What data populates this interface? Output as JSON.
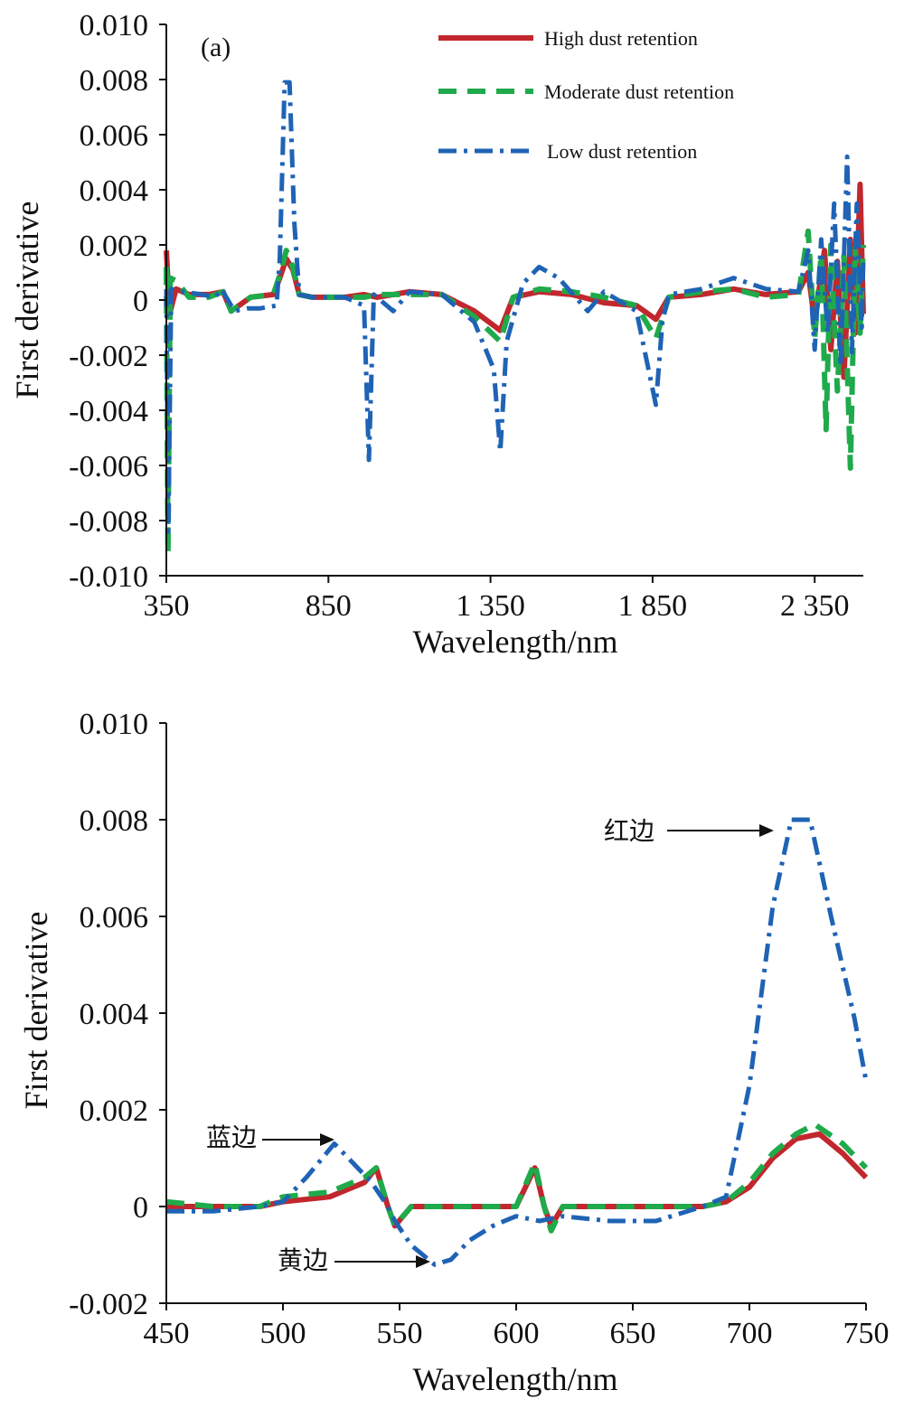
{
  "colors": {
    "high": "#c1272d",
    "moderate": "#1faa4b",
    "low": "#1f63b5"
  },
  "chart_data": [
    {
      "type": "line",
      "panel_label": "(a)",
      "xlabel": "Wavelength/nm",
      "ylabel": "First derivative",
      "xlim": [
        350,
        2500
      ],
      "ylim": [
        -0.01,
        0.01
      ],
      "xticks": [
        350,
        850,
        1350,
        1850,
        2350
      ],
      "xtick_labels": [
        "350",
        "850",
        "1 350",
        "1 850",
        "2 350"
      ],
      "yticks": [
        0.01,
        0.008,
        0.006,
        0.004,
        0.002,
        0,
        -0.002,
        -0.004,
        -0.006,
        -0.008,
        -0.01
      ],
      "ytick_labels": [
        "0.010",
        "0.008",
        "0.006",
        "0.004",
        "0.002",
        "0",
        "-0.002",
        "-0.004",
        "-0.006",
        "-0.008",
        "-0.010"
      ],
      "legend": {
        "position": "top-right"
      },
      "series": [
        {
          "name": "High dust retention",
          "key": "high",
          "style": "solid",
          "points": [
            [
              350,
              0.0018
            ],
            [
              360,
              -0.0005
            ],
            [
              380,
              0.0004
            ],
            [
              420,
              0.0002
            ],
            [
              480,
              0.0002
            ],
            [
              525,
              0.0003
            ],
            [
              550,
              -0.0004
            ],
            [
              610,
              0.0001
            ],
            [
              680,
              0.0002
            ],
            [
              700,
              0.0008
            ],
            [
              720,
              0.0015
            ],
            [
              740,
              0.0011
            ],
            [
              760,
              0.0002
            ],
            [
              800,
              0.0001
            ],
            [
              900,
              0.0001
            ],
            [
              960,
              0.0002
            ],
            [
              1000,
              0.0001
            ],
            [
              1100,
              0.0003
            ],
            [
              1200,
              0.0002
            ],
            [
              1300,
              -0.0004
            ],
            [
              1380,
              -0.0011
            ],
            [
              1420,
              0.0001
            ],
            [
              1500,
              0.0003
            ],
            [
              1600,
              0.0002
            ],
            [
              1700,
              -0.0001
            ],
            [
              1800,
              -0.0002
            ],
            [
              1860,
              -0.0007
            ],
            [
              1900,
              0.0001
            ],
            [
              2000,
              0.0002
            ],
            [
              2100,
              0.0004
            ],
            [
              2200,
              0.0002
            ],
            [
              2300,
              0.0003
            ],
            [
              2330,
              0.001
            ],
            [
              2350,
              -0.0008
            ],
            [
              2380,
              0.0018
            ],
            [
              2400,
              -0.0018
            ],
            [
              2420,
              0.0014
            ],
            [
              2440,
              -0.0028
            ],
            [
              2460,
              0.0022
            ],
            [
              2475,
              -0.0012
            ],
            [
              2490,
              0.0042
            ],
            [
              2500,
              -0.0005
            ]
          ]
        },
        {
          "name": "Moderate dust retention",
          "key": "moderate",
          "style": "dashed",
          "points": [
            [
              350,
              0.0012
            ],
            [
              355,
              -0.0092
            ],
            [
              362,
              0.0008
            ],
            [
              380,
              0.0007
            ],
            [
              420,
              0.0001
            ],
            [
              480,
              0.0001
            ],
            [
              525,
              0.0003
            ],
            [
              550,
              -0.0004
            ],
            [
              610,
              0.0001
            ],
            [
              680,
              0.0002
            ],
            [
              700,
              0.0009
            ],
            [
              720,
              0.0018
            ],
            [
              740,
              0.0012
            ],
            [
              760,
              0.0002
            ],
            [
              800,
              0.0001
            ],
            [
              900,
              0.0001
            ],
            [
              960,
              0.0001
            ],
            [
              1000,
              0.0002
            ],
            [
              1100,
              0.0002
            ],
            [
              1200,
              0.0002
            ],
            [
              1300,
              -0.0006
            ],
            [
              1380,
              -0.0015
            ],
            [
              1420,
              0.0001
            ],
            [
              1500,
              0.0004
            ],
            [
              1600,
              0.0003
            ],
            [
              1700,
              0.0001
            ],
            [
              1800,
              -0.0002
            ],
            [
              1860,
              -0.0014
            ],
            [
              1900,
              0.0001
            ],
            [
              2000,
              0.0003
            ],
            [
              2100,
              0.0004
            ],
            [
              2200,
              0.0001
            ],
            [
              2300,
              0.0002
            ],
            [
              2330,
              0.0025
            ],
            [
              2350,
              -0.0014
            ],
            [
              2370,
              0.0017
            ],
            [
              2385,
              -0.0047
            ],
            [
              2400,
              0.002
            ],
            [
              2420,
              -0.0033
            ],
            [
              2440,
              0.0016
            ],
            [
              2460,
              -0.0061
            ],
            [
              2475,
              0.0019
            ],
            [
              2490,
              -0.0012
            ],
            [
              2500,
              0.002
            ]
          ]
        },
        {
          "name": "Low dust retention",
          "key": "low",
          "style": "dashdot",
          "points": [
            [
              350,
              0.0004
            ],
            [
              356,
              -0.0084
            ],
            [
              365,
              0.0004
            ],
            [
              400,
              0.0003
            ],
            [
              460,
              0.0002
            ],
            [
              500,
              0.0001
            ],
            [
              520,
              0.0004
            ],
            [
              560,
              -0.0004
            ],
            [
              600,
              -0.0003
            ],
            [
              640,
              -0.0003
            ],
            [
              690,
              -0.0002
            ],
            [
              700,
              0.0015
            ],
            [
              715,
              0.0079
            ],
            [
              730,
              0.0079
            ],
            [
              745,
              0.0028
            ],
            [
              760,
              0.0002
            ],
            [
              800,
              0.0001
            ],
            [
              900,
              0.0001
            ],
            [
              960,
              -0.0002
            ],
            [
              975,
              -0.0058
            ],
            [
              990,
              0.0002
            ],
            [
              1050,
              -0.0004
            ],
            [
              1100,
              0.0003
            ],
            [
              1200,
              0.0002
            ],
            [
              1300,
              -0.0008
            ],
            [
              1360,
              -0.0025
            ],
            [
              1380,
              -0.0055
            ],
            [
              1400,
              -0.0015
            ],
            [
              1450,
              0.0006
            ],
            [
              1500,
              0.0012
            ],
            [
              1560,
              0.0008
            ],
            [
              1650,
              -0.0004
            ],
            [
              1700,
              0.0003
            ],
            [
              1800,
              -0.0004
            ],
            [
              1860,
              -0.0038
            ],
            [
              1880,
              -0.0008
            ],
            [
              1900,
              0.0002
            ],
            [
              2000,
              0.0004
            ],
            [
              2100,
              0.0008
            ],
            [
              2200,
              0.0004
            ],
            [
              2300,
              0.0003
            ],
            [
              2330,
              0.0018
            ],
            [
              2350,
              -0.0018
            ],
            [
              2370,
              0.0022
            ],
            [
              2390,
              -0.0012
            ],
            [
              2410,
              0.0035
            ],
            [
              2430,
              -0.0024
            ],
            [
              2450,
              0.0052
            ],
            [
              2465,
              -0.0019
            ],
            [
              2480,
              0.0035
            ],
            [
              2495,
              -0.001
            ],
            [
              2500,
              0.0015
            ]
          ]
        }
      ]
    },
    {
      "type": "line",
      "xlabel": "Wavelength/nm",
      "ylabel": "First derivative",
      "xlim": [
        450,
        750
      ],
      "ylim": [
        -0.002,
        0.01
      ],
      "xticks": [
        450,
        500,
        550,
        600,
        650,
        700,
        750
      ],
      "xtick_labels": [
        "450",
        "500",
        "550",
        "600",
        "650",
        "700",
        "750"
      ],
      "yticks": [
        0.01,
        0.008,
        0.006,
        0.004,
        0.002,
        0,
        -0.002
      ],
      "ytick_labels": [
        "0.010",
        "0.008",
        "0.006",
        "0.004",
        "0.002",
        "0",
        "-0.002"
      ],
      "annotations": [
        {
          "text": "红边",
          "x": 718,
          "y": 0.008
        },
        {
          "text": "蓝边",
          "x": 522,
          "y": 0.00135
        },
        {
          "text": "黄边",
          "x": 564,
          "y": -0.0012
        }
      ],
      "series": [
        {
          "name": "High dust retention",
          "key": "high",
          "style": "solid",
          "points": [
            [
              450,
              0.0
            ],
            [
              470,
              0.0
            ],
            [
              490,
              0.0
            ],
            [
              500,
              0.0001
            ],
            [
              520,
              0.0002
            ],
            [
              535,
              0.0005
            ],
            [
              540,
              0.0008
            ],
            [
              545,
              0.0
            ],
            [
              548,
              -0.0004
            ],
            [
              555,
              0.0
            ],
            [
              570,
              0.0
            ],
            [
              590,
              0.0
            ],
            [
              600,
              0.0
            ],
            [
              608,
              0.0008
            ],
            [
              612,
              0.0
            ],
            [
              615,
              -0.0004
            ],
            [
              620,
              0.0
            ],
            [
              640,
              0.0
            ],
            [
              660,
              0.0
            ],
            [
              680,
              0.0
            ],
            [
              690,
              0.0001
            ],
            [
              700,
              0.0004
            ],
            [
              710,
              0.001
            ],
            [
              720,
              0.0014
            ],
            [
              730,
              0.0015
            ],
            [
              740,
              0.0011
            ],
            [
              750,
              0.0006
            ]
          ]
        },
        {
          "name": "Moderate dust retention",
          "key": "moderate",
          "style": "dashed",
          "points": [
            [
              450,
              0.0001
            ],
            [
              470,
              0.0
            ],
            [
              490,
              0.0
            ],
            [
              500,
              0.0002
            ],
            [
              520,
              0.0003
            ],
            [
              535,
              0.0006
            ],
            [
              540,
              0.0008
            ],
            [
              545,
              0.0
            ],
            [
              548,
              -0.0004
            ],
            [
              555,
              0.0
            ],
            [
              570,
              0.0
            ],
            [
              590,
              0.0
            ],
            [
              600,
              0.0
            ],
            [
              608,
              0.0009
            ],
            [
              612,
              0.0
            ],
            [
              615,
              -0.0005
            ],
            [
              620,
              0.0
            ],
            [
              640,
              0.0
            ],
            [
              660,
              0.0
            ],
            [
              680,
              0.0
            ],
            [
              690,
              0.0001
            ],
            [
              700,
              0.0005
            ],
            [
              710,
              0.0011
            ],
            [
              720,
              0.0015
            ],
            [
              728,
              0.0017
            ],
            [
              740,
              0.0013
            ],
            [
              750,
              0.0008
            ]
          ]
        },
        {
          "name": "Low dust retention",
          "key": "low",
          "style": "dashdot",
          "points": [
            [
              450,
              -0.0001
            ],
            [
              470,
              -0.0001
            ],
            [
              490,
              0.0
            ],
            [
              500,
              0.0001
            ],
            [
              510,
              0.0006
            ],
            [
              522,
              0.0013
            ],
            [
              530,
              0.0009
            ],
            [
              538,
              0.0005
            ],
            [
              545,
              0.0
            ],
            [
              548,
              -0.0003
            ],
            [
              555,
              -0.0008
            ],
            [
              565,
              -0.0012
            ],
            [
              572,
              -0.0011
            ],
            [
              580,
              -0.0007
            ],
            [
              590,
              -0.0004
            ],
            [
              600,
              -0.0002
            ],
            [
              610,
              -0.0003
            ],
            [
              620,
              -0.0002
            ],
            [
              640,
              -0.0003
            ],
            [
              660,
              -0.0003
            ],
            [
              680,
              0.0
            ],
            [
              690,
              0.0002
            ],
            [
              700,
              0.0025
            ],
            [
              710,
              0.0062
            ],
            [
              718,
              0.008
            ],
            [
              726,
              0.008
            ],
            [
              735,
              0.006
            ],
            [
              745,
              0.0039
            ],
            [
              750,
              0.0026
            ]
          ]
        }
      ]
    }
  ]
}
